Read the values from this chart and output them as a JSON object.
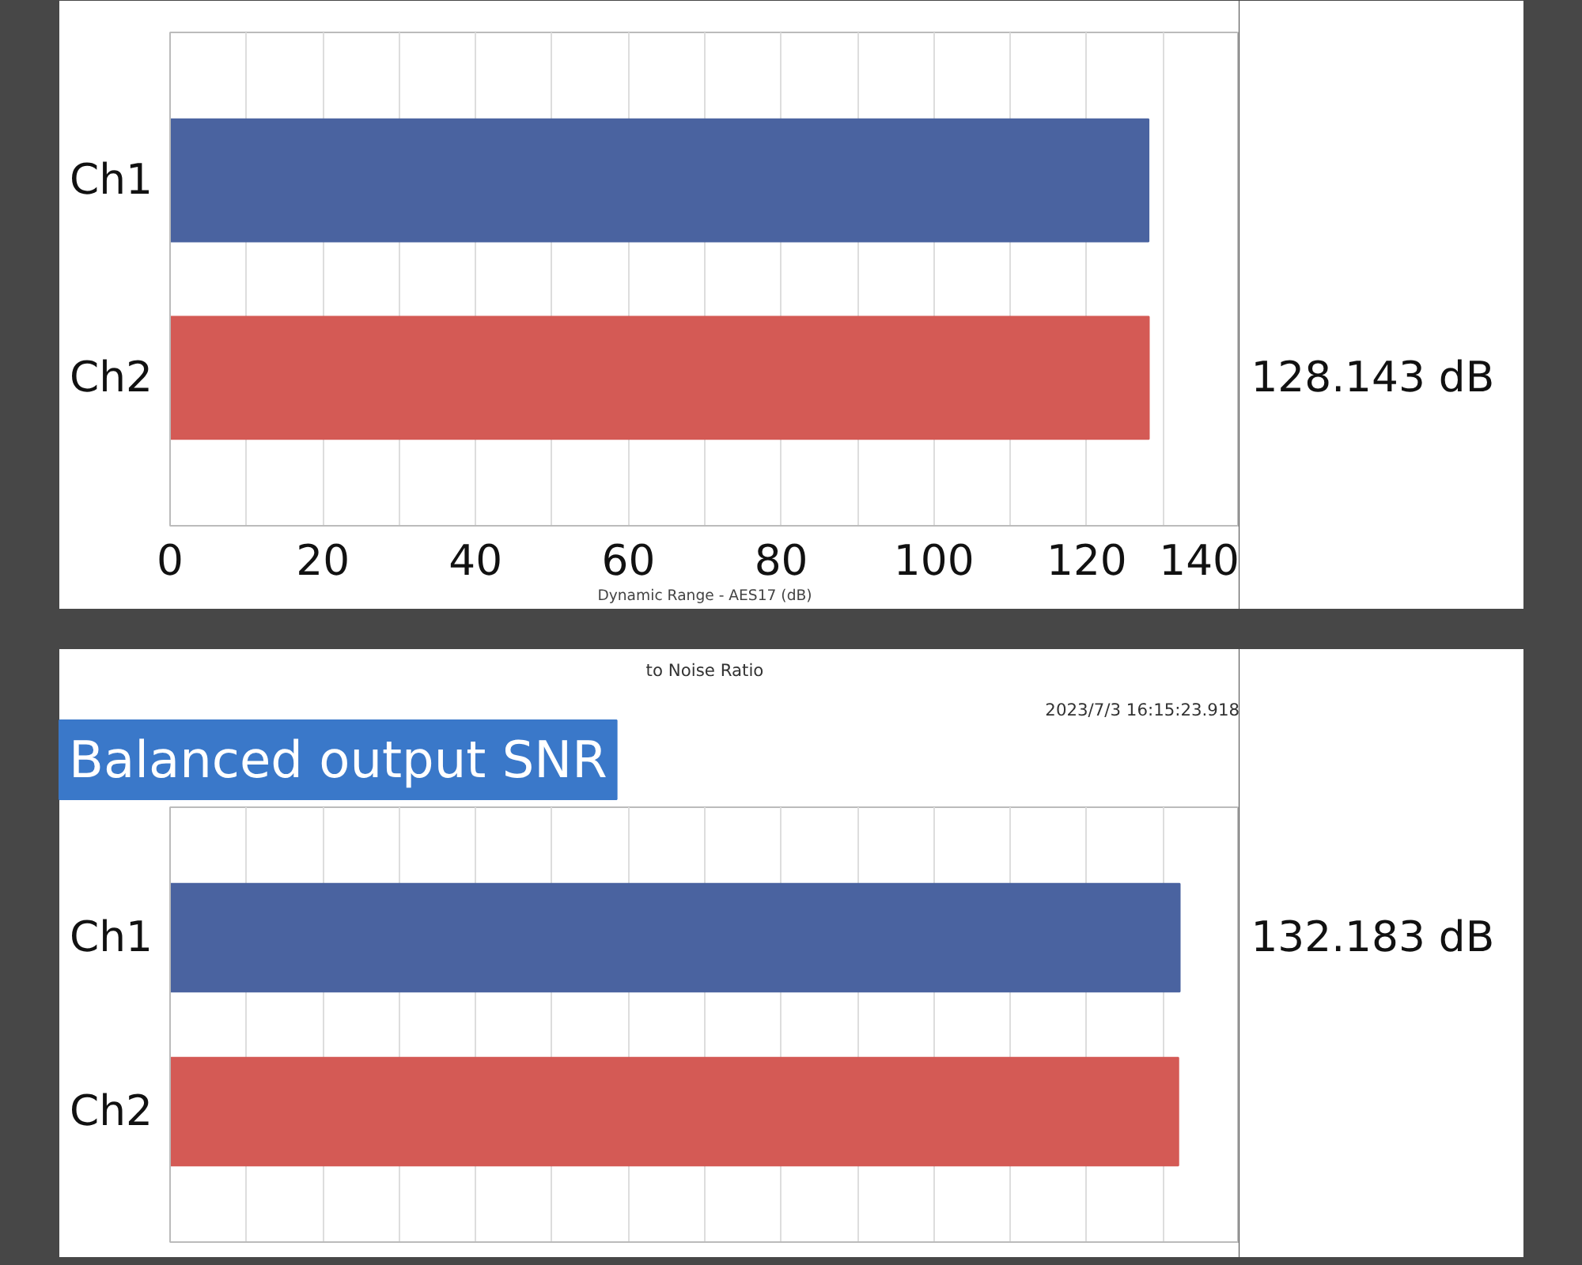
{
  "chart_data": [
    {
      "type": "bar",
      "orientation": "horizontal",
      "categories": [
        "Ch1",
        "Ch2"
      ],
      "values": [
        128.1,
        128.143
      ],
      "colors": [
        "#4a63a0",
        "#d45a55"
      ],
      "value_labels": [
        null,
        "128.143 dB"
      ],
      "xlabel": "Dynamic Range - AES17 (dB)",
      "xlim": [
        0,
        140
      ],
      "xticks": [
        0,
        {
          "value": 10,
          "label": null
        },
        20,
        {
          "value": 30,
          "label": null
        },
        40,
        {
          "value": 50,
          "label": null
        },
        60,
        {
          "value": 70,
          "label": null
        },
        80,
        {
          "value": 90,
          "label": null
        },
        100,
        {
          "value": 110,
          "label": null
        },
        120,
        {
          "value": 130,
          "label": null
        },
        140
      ],
      "grid": "x"
    },
    {
      "type": "bar",
      "orientation": "horizontal",
      "title": "Balanced output SNR",
      "annotations": [
        "to Noise Ratio",
        "2023/7/3 16:15:23.918"
      ],
      "categories": [
        "Ch1",
        "Ch2"
      ],
      "values": [
        132.183,
        132.0
      ],
      "colors": [
        "#4a63a0",
        "#d45a55"
      ],
      "value_labels": [
        "132.183 dB",
        null
      ],
      "xlim": [
        0,
        140
      ],
      "xticks": [
        {
          "value": 0,
          "label": null
        },
        {
          "value": 10,
          "label": null
        },
        {
          "value": 20,
          "label": null
        },
        {
          "value": 30,
          "label": null
        },
        {
          "value": 40,
          "label": null
        },
        {
          "value": 50,
          "label": null
        },
        {
          "value": 60,
          "label": null
        },
        {
          "value": 70,
          "label": null
        },
        {
          "value": 80,
          "label": null
        },
        {
          "value": 90,
          "label": null
        },
        {
          "value": 100,
          "label": null
        },
        {
          "value": 110,
          "label": null
        },
        {
          "value": 120,
          "label": null
        },
        {
          "value": 130,
          "label": null
        },
        {
          "value": 140,
          "label": null
        }
      ],
      "grid": "x",
      "tick_labels": "y"
    }
  ]
}
